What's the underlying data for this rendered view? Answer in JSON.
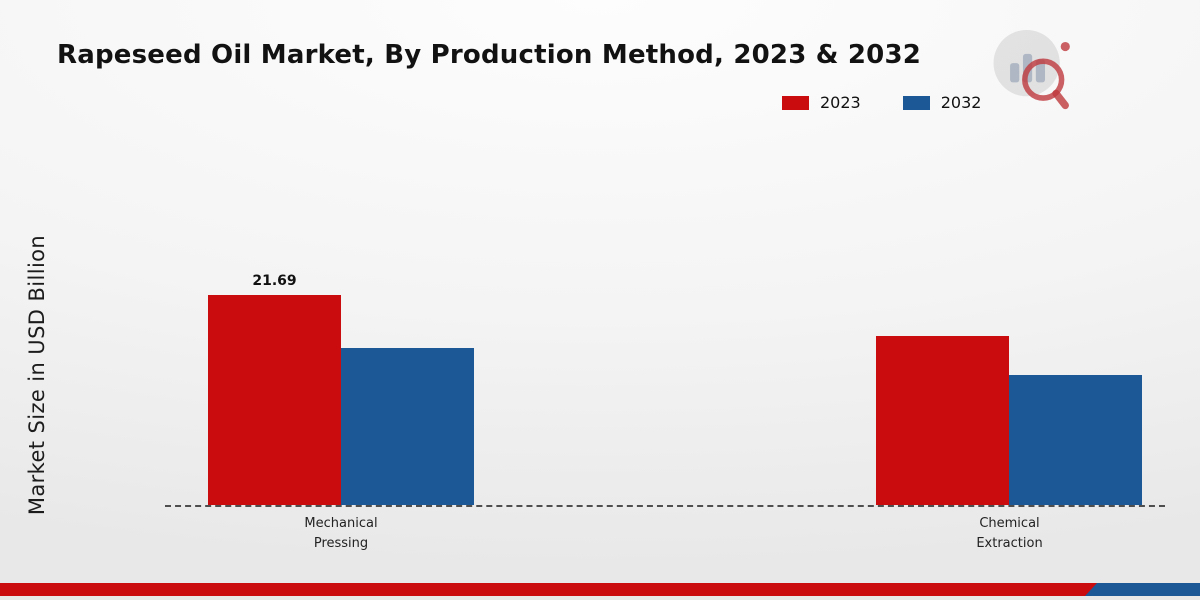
{
  "chart_data": {
    "type": "bar",
    "title": "Rapeseed Oil Market, By Production Method, 2023 & 2032",
    "ylabel": "Market Size in USD Billion",
    "xlabel": "",
    "categories": [
      "Mechanical Pressing",
      "Chemical Extraction"
    ],
    "series": [
      {
        "name": "2023",
        "color": "#cb0c0f",
        "values": [
          21.69,
          17.5
        ]
      },
      {
        "name": "2032",
        "color": "#1c5796",
        "values": [
          16.2,
          13.4
        ]
      }
    ],
    "annotations": [
      {
        "series_index": 0,
        "category_index": 0,
        "text": "21.69"
      }
    ],
    "ylim": [
      0,
      37
    ],
    "grid": false,
    "baseline_style": "dashed",
    "legend_position": "top-right"
  },
  "footer": {
    "left_color": "#cb0c0f",
    "right_color": "#1c5796"
  },
  "logo": {
    "name": "market-research-logo"
  }
}
